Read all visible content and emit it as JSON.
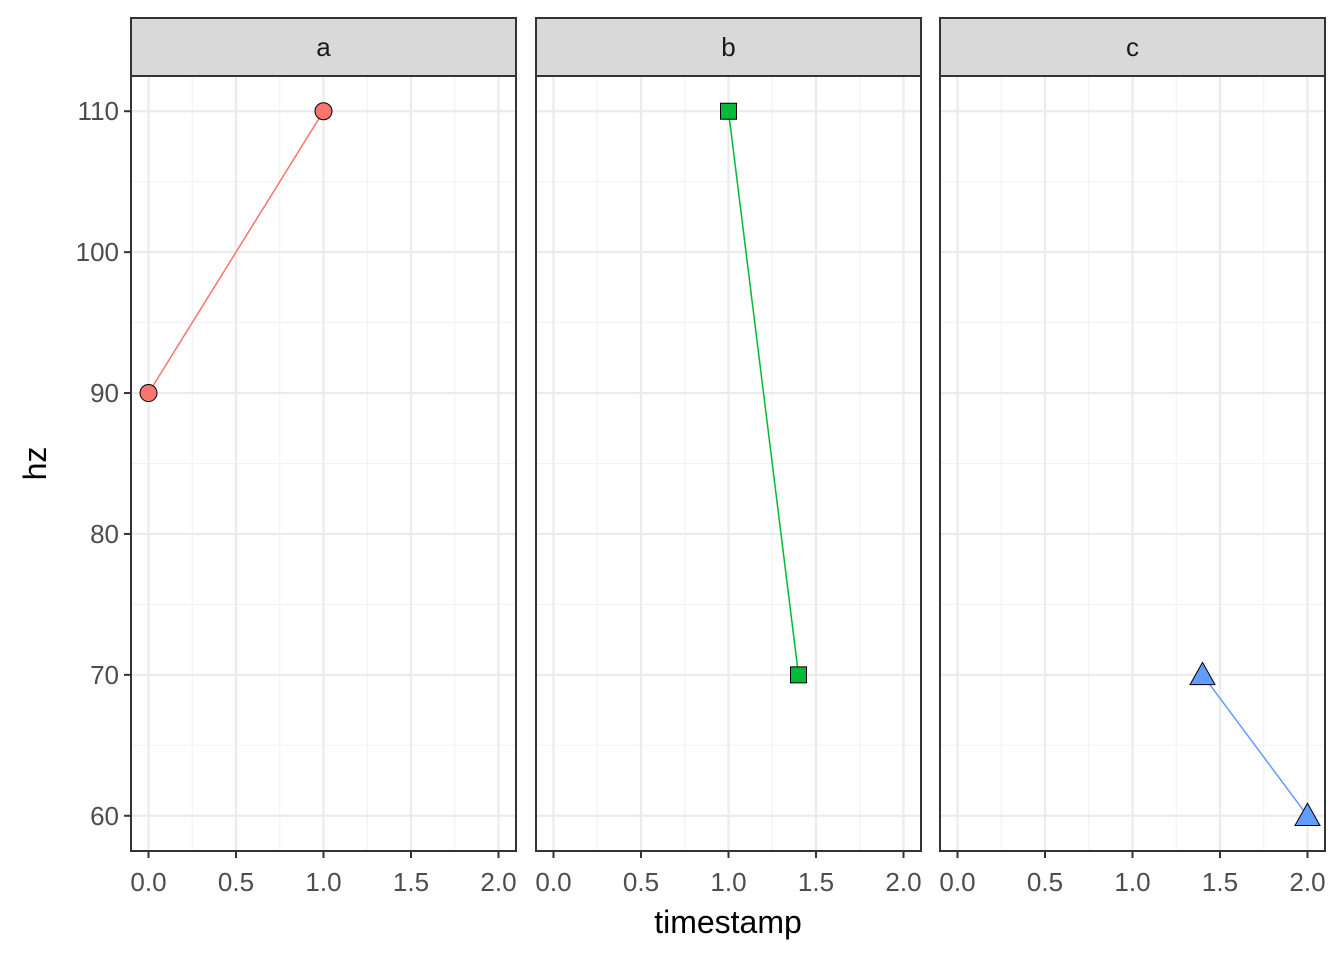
{
  "chart_data": {
    "type": "line",
    "xlabel": "timestamp",
    "ylabel": "hz",
    "x_ticks": [
      "0.0",
      "0.5",
      "1.0",
      "1.5",
      "2.0"
    ],
    "y_ticks": [
      "60",
      "70",
      "80",
      "90",
      "100",
      "110"
    ],
    "xlim": [
      -0.1,
      2.1
    ],
    "ylim": [
      57.5,
      112.5
    ],
    "grid": true,
    "facets": [
      {
        "label": "a",
        "marker": "circle",
        "color": "#F8766D",
        "x": [
          0.0,
          1.0
        ],
        "y": [
          90,
          110
        ]
      },
      {
        "label": "b",
        "marker": "square",
        "color": "#00BA38",
        "x": [
          1.0,
          1.4
        ],
        "y": [
          110,
          70
        ]
      },
      {
        "label": "c",
        "marker": "triangle",
        "color": "#619CFF",
        "x": [
          1.4,
          2.0
        ],
        "y": [
          70,
          60
        ]
      }
    ]
  }
}
